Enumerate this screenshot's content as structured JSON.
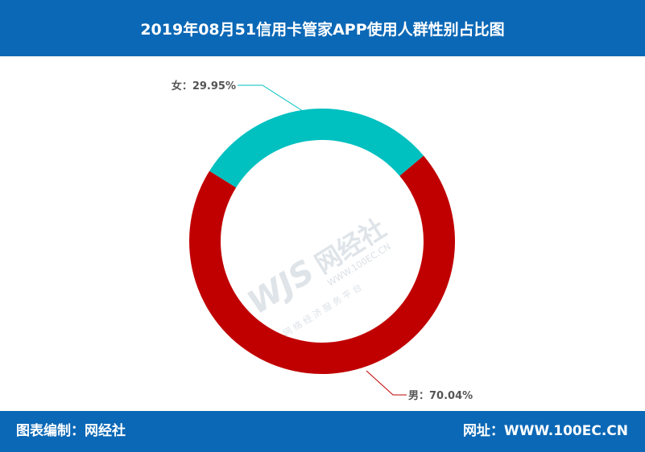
{
  "header": {
    "title": "2019年08月51信用卡管家APP使用人群性别占比图"
  },
  "footer": {
    "left_text": "图表编制：网经社",
    "right_text": "网址：WWW.100EC.CN"
  },
  "watermark": {
    "logo_text": "WJS",
    "brand_text": "网经社",
    "url_text": "WWW.100EC.CN",
    "tagline": "网 络 经 济 服 务 平 台"
  },
  "chart_data": {
    "type": "pie",
    "variant": "donut",
    "slices": [
      {
        "label": "女",
        "value": 29.95,
        "display": "女：29.95%",
        "color": "#00c0c0"
      },
      {
        "label": "男",
        "value": 70.04,
        "display": "男：70.04%",
        "color": "#c00000"
      }
    ],
    "colors": {
      "leader_female": "#00c0c0",
      "leader_male": "#c00000",
      "label_text": "#555555"
    }
  }
}
